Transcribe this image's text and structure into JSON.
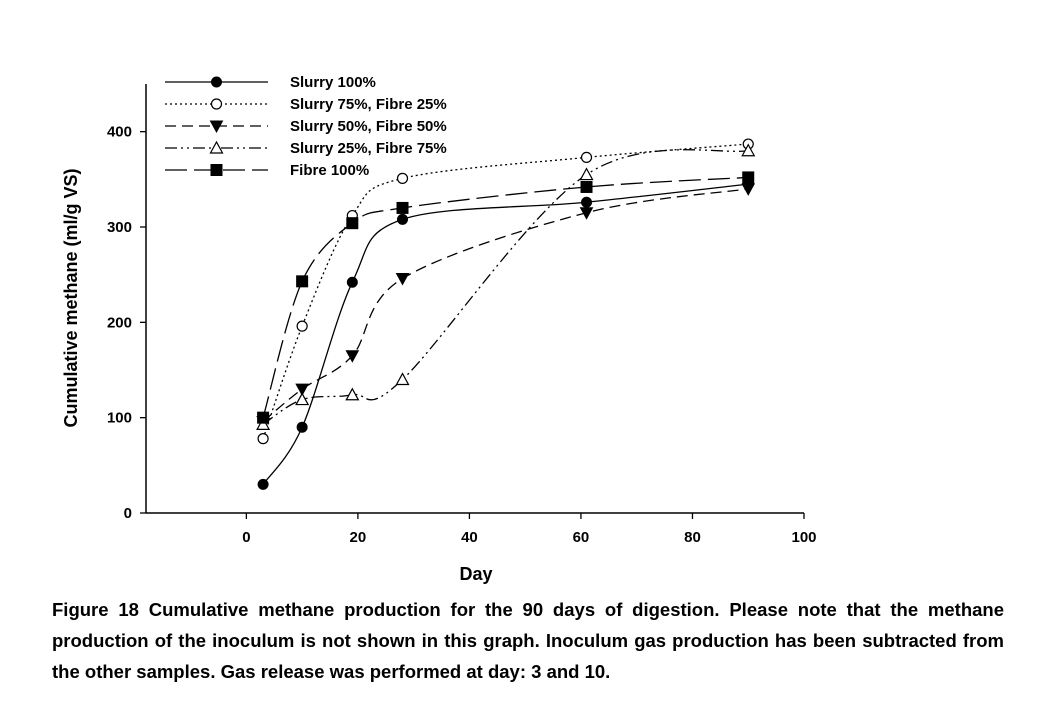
{
  "chart_data": {
    "type": "line",
    "xlabel": "Day",
    "ylabel": "Cumulative methane (ml/g VS)",
    "xlim": [
      -18,
      100
    ],
    "ylim": [
      0,
      450
    ],
    "xticks": [
      0,
      20,
      40,
      60,
      80,
      100
    ],
    "yticks": [
      0,
      100,
      200,
      300,
      400
    ],
    "grid": false,
    "legend_position": "top-left",
    "series": [
      {
        "name": "Slurry 100%",
        "marker": "filled-circle",
        "dash": "solid",
        "x": [
          3,
          10,
          19,
          28,
          61,
          90
        ],
        "values": [
          30,
          90,
          242,
          308,
          326,
          345
        ]
      },
      {
        "name": "Slurry 75%, Fibre 25%",
        "marker": "open-circle",
        "dash": "dotted",
        "x": [
          3,
          10,
          19,
          28,
          61,
          90
        ],
        "values": [
          78,
          196,
          312,
          351,
          373,
          387
        ]
      },
      {
        "name": "Slurry 50%, Fibre 50%",
        "marker": "filled-triangle-down",
        "dash": "dashed",
        "x": [
          3,
          10,
          19,
          28,
          61,
          90
        ],
        "values": [
          96,
          130,
          165,
          246,
          315,
          340
        ]
      },
      {
        "name": "Slurry 25%, Fibre 75%",
        "marker": "open-triangle-up",
        "dash": "dash-dot-dot",
        "x": [
          3,
          10,
          19,
          28,
          61,
          90
        ],
        "values": [
          93,
          119,
          124,
          140,
          355,
          380
        ]
      },
      {
        "name": "Fibre 100%",
        "marker": "filled-square",
        "dash": "long-dash",
        "x": [
          3,
          10,
          19,
          28,
          61,
          90
        ],
        "values": [
          100,
          243,
          304,
          320,
          342,
          352
        ]
      }
    ]
  },
  "caption": "Figure 18 Cumulative methane production for the 90 days of digestion. Please note that the methane production of the inoculum is not shown in this graph. Inoculum gas production has been subtracted from the other samples. Gas release was performed at day: 3 and 10."
}
